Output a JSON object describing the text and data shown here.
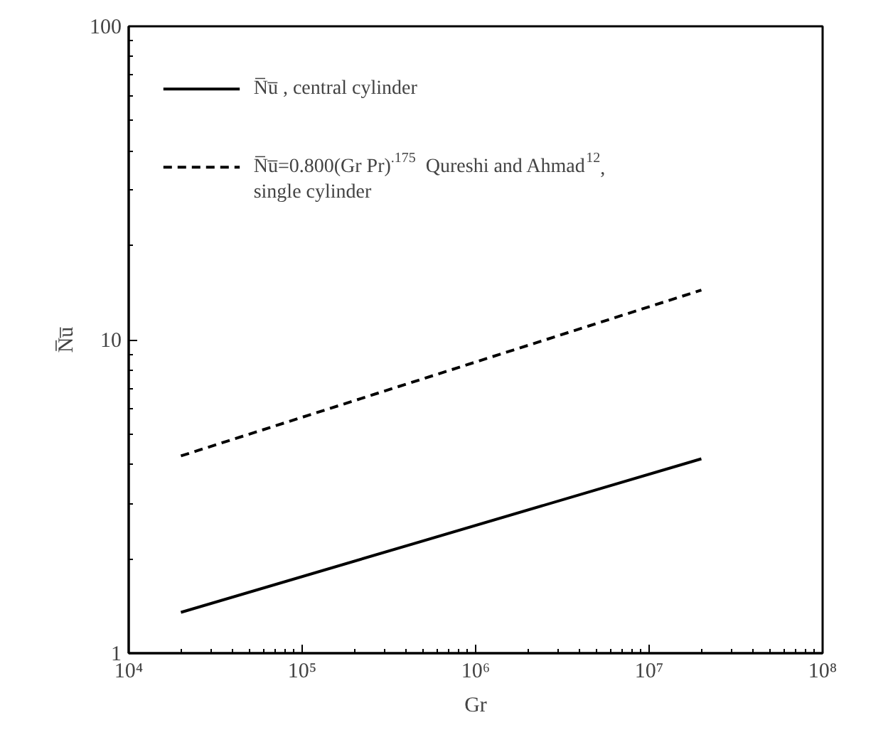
{
  "chart_data": {
    "type": "line",
    "xlabel": "Gr",
    "ylabel": "N̅u̅",
    "log": "xy",
    "grid": false,
    "legend": "top left",
    "xlim": [
      10000,
      100000000
    ],
    "xticks": [
      {
        "value": 10000,
        "label": "10⁴"
      },
      {
        "value": 100000,
        "label": "10⁵"
      },
      {
        "value": 1000000,
        "label": "10⁶"
      },
      {
        "value": 10000000,
        "label": "10⁷"
      },
      {
        "value": 100000000,
        "label": "10⁸"
      }
    ],
    "ylim": [
      1,
      100
    ],
    "yticks": [
      1,
      10,
      100
    ],
    "x": [
      20000,
      20000000
    ],
    "series": [
      {
        "name": "N̅u̅ , central cylinder",
        "color": "#000000",
        "line_style": "solid",
        "values": [
          1.35,
          4.17
        ]
      },
      {
        "name": "N̅u̅=0.800(Gr Pr)$^{.175}$  Qureshi and Ahmad$^{12}$,\nsingle cylinder",
        "color": "#000000",
        "line_style": "dashed",
        "values": [
          4.26,
          14.4
        ]
      }
    ]
  }
}
